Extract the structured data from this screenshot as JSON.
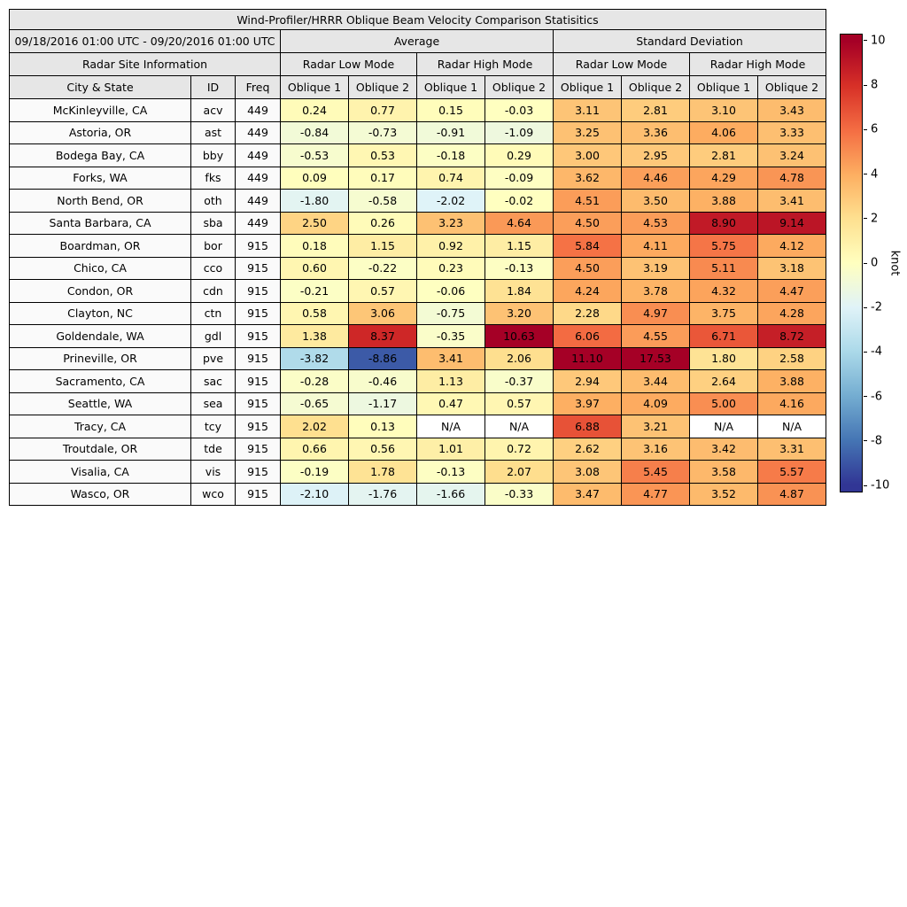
{
  "chart_data": {
    "type": "table",
    "title": "Wind-Profiler/HRRR Oblique Beam Velocity Comparison Statisitics",
    "date_range": "09/18/2016 01:00 UTC - 09/20/2016 01:00 UTC",
    "site_info_header": "Radar Site Information",
    "group_headers": [
      "Average",
      "Standard Deviation"
    ],
    "mode_headers": [
      "Radar Low Mode",
      "Radar High Mode",
      "Radar Low Mode",
      "Radar High Mode"
    ],
    "col_headers": [
      "City & State",
      "ID",
      "Freq",
      "Oblique 1",
      "Oblique 2",
      "Oblique 1",
      "Oblique 2",
      "Oblique 1",
      "Oblique 2",
      "Oblique 1",
      "Oblique 2"
    ],
    "rows": [
      {
        "city": "McKinleyville, CA",
        "id": "acv",
        "freq": "449",
        "values": [
          "0.24",
          "0.77",
          "0.15",
          "-0.03",
          "3.11",
          "2.81",
          "3.10",
          "3.43"
        ]
      },
      {
        "city": "Astoria, OR",
        "id": "ast",
        "freq": "449",
        "values": [
          "-0.84",
          "-0.73",
          "-0.91",
          "-1.09",
          "3.25",
          "3.36",
          "4.06",
          "3.33"
        ]
      },
      {
        "city": "Bodega Bay, CA",
        "id": "bby",
        "freq": "449",
        "values": [
          "-0.53",
          "0.53",
          "-0.18",
          "0.29",
          "3.00",
          "2.95",
          "2.81",
          "3.24"
        ]
      },
      {
        "city": "Forks, WA",
        "id": "fks",
        "freq": "449",
        "values": [
          "0.09",
          "0.17",
          "0.74",
          "-0.09",
          "3.62",
          "4.46",
          "4.29",
          "4.78"
        ]
      },
      {
        "city": "North Bend, OR",
        "id": "oth",
        "freq": "449",
        "values": [
          "-1.80",
          "-0.58",
          "-2.02",
          "-0.02",
          "4.51",
          "3.50",
          "3.88",
          "3.41"
        ]
      },
      {
        "city": "Santa Barbara, CA",
        "id": "sba",
        "freq": "449",
        "values": [
          "2.50",
          "0.26",
          "3.23",
          "4.64",
          "4.50",
          "4.53",
          "8.90",
          "9.14"
        ]
      },
      {
        "city": "Boardman, OR",
        "id": "bor",
        "freq": "915",
        "values": [
          "0.18",
          "1.15",
          "0.92",
          "1.15",
          "5.84",
          "4.11",
          "5.75",
          "4.12"
        ]
      },
      {
        "city": "Chico, CA",
        "id": "cco",
        "freq": "915",
        "values": [
          "0.60",
          "-0.22",
          "0.23",
          "-0.13",
          "4.50",
          "3.19",
          "5.11",
          "3.18"
        ]
      },
      {
        "city": "Condon, OR",
        "id": "cdn",
        "freq": "915",
        "values": [
          "-0.21",
          "0.57",
          "-0.06",
          "1.84",
          "4.24",
          "3.78",
          "4.32",
          "4.47"
        ]
      },
      {
        "city": "Clayton, NC",
        "id": "ctn",
        "freq": "915",
        "values": [
          "0.58",
          "3.06",
          "-0.75",
          "3.20",
          "2.28",
          "4.97",
          "3.75",
          "4.28"
        ]
      },
      {
        "city": "Goldendale, WA",
        "id": "gdl",
        "freq": "915",
        "values": [
          "1.38",
          "8.37",
          "-0.35",
          "10.63",
          "6.06",
          "4.55",
          "6.71",
          "8.72"
        ]
      },
      {
        "city": "Prineville, OR",
        "id": "pve",
        "freq": "915",
        "values": [
          "-3.82",
          "-8.86",
          "3.41",
          "2.06",
          "11.10",
          "17.53",
          "1.80",
          "2.58"
        ]
      },
      {
        "city": "Sacramento, CA",
        "id": "sac",
        "freq": "915",
        "values": [
          "-0.28",
          "-0.46",
          "1.13",
          "-0.37",
          "2.94",
          "3.44",
          "2.64",
          "3.88"
        ]
      },
      {
        "city": "Seattle, WA",
        "id": "sea",
        "freq": "915",
        "values": [
          "-0.65",
          "-1.17",
          "0.47",
          "0.57",
          "3.97",
          "4.09",
          "5.00",
          "4.16"
        ]
      },
      {
        "city": "Tracy, CA",
        "id": "tcy",
        "freq": "915",
        "values": [
          "2.02",
          "0.13",
          "N/A",
          "N/A",
          "6.88",
          "3.21",
          "N/A",
          "N/A"
        ]
      },
      {
        "city": "Troutdale, OR",
        "id": "tde",
        "freq": "915",
        "values": [
          "0.66",
          "0.56",
          "1.01",
          "0.72",
          "2.62",
          "3.16",
          "3.42",
          "3.31"
        ]
      },
      {
        "city": "Visalia, CA",
        "id": "vis",
        "freq": "915",
        "values": [
          "-0.19",
          "1.78",
          "-0.13",
          "2.07",
          "3.08",
          "5.45",
          "3.58",
          "5.57"
        ]
      },
      {
        "city": "Wasco, OR",
        "id": "wco",
        "freq": "915",
        "values": [
          "-2.10",
          "-1.76",
          "-1.66",
          "-0.33",
          "3.47",
          "4.77",
          "3.52",
          "4.87"
        ]
      }
    ],
    "colorbar": {
      "label": "knot",
      "min": -10,
      "max": 10,
      "ticks": [
        "10",
        "8",
        "6",
        "4",
        "2",
        "0",
        "-2",
        "-4",
        "-6",
        "-8",
        "-10"
      ],
      "colors": [
        "#a50026",
        "#d73027",
        "#f46d43",
        "#fdae61",
        "#fee090",
        "#ffffbf",
        "#e0f3f8",
        "#abd9e9",
        "#74add1",
        "#4575b4",
        "#313695"
      ]
    },
    "style_colors": {
      "header_bg": "#e6e6e6",
      "label_cell_bg": "#fafafa",
      "na_cell_bg": "#ffffff",
      "grid_border": "#000000"
    }
  }
}
